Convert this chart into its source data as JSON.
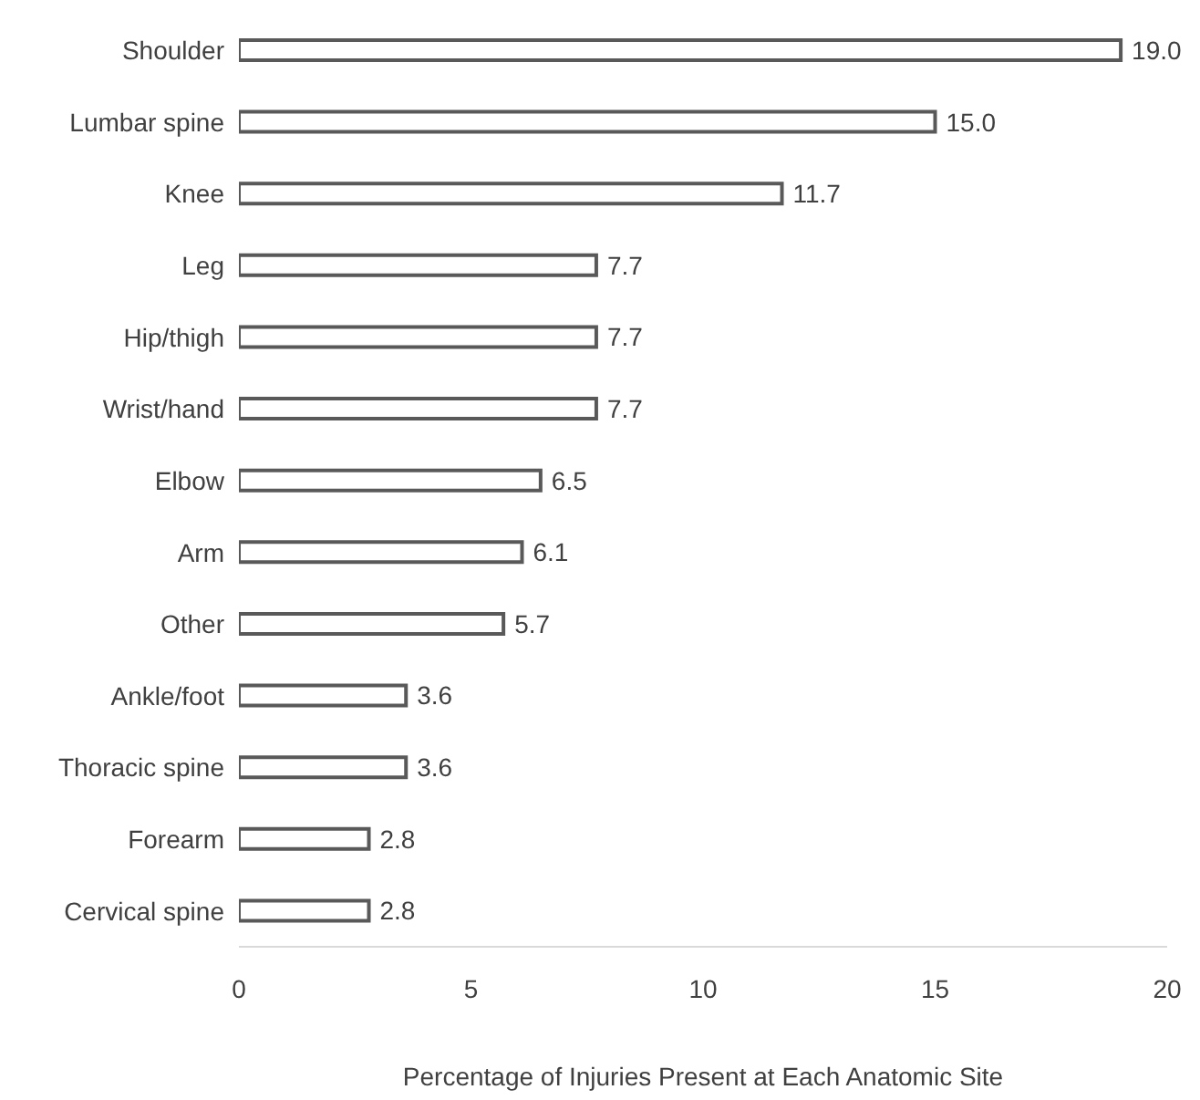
{
  "chart_data": {
    "type": "bar",
    "orientation": "horizontal",
    "xlabel": "Percentage of Injuries Present at Each Anatomic Site",
    "categories": [
      "Shoulder",
      "Lumbar spine",
      "Knee",
      "Leg",
      "Hip/thigh",
      "Wrist/hand",
      "Elbow",
      "Arm",
      "Other",
      "Ankle/foot",
      "Thoracic spine",
      "Forearm",
      "Cervical spine"
    ],
    "values": [
      19.0,
      15.0,
      11.7,
      7.7,
      7.7,
      7.7,
      6.5,
      6.1,
      5.7,
      3.6,
      3.6,
      2.8,
      2.8
    ],
    "value_labels": [
      "19.0",
      "15.0",
      "11.7",
      "7.7",
      "7.7",
      "7.7",
      "6.5",
      "6.1",
      "5.7",
      "3.6",
      "3.6",
      "2.8",
      "2.8"
    ],
    "color": "#ffffff",
    "xlim": [
      0,
      20
    ],
    "xticks": [
      0,
      5,
      10,
      15,
      20
    ],
    "grid": false
  }
}
